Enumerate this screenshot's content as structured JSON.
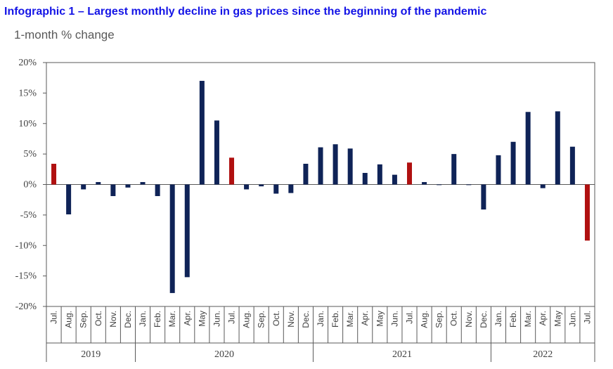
{
  "header": {
    "title": "Infographic 1 –  Largest monthly decline in gas prices since the beginning of the pandemic",
    "subtitle": "1-month % change"
  },
  "colors": {
    "normal": "#0f2357",
    "highlight": "#b01010",
    "axis": "#595959"
  },
  "chart_data": {
    "type": "bar",
    "title": "Infographic 1 –  Largest monthly decline in gas prices since the beginning of the pandemic",
    "ylabel": "1-month % change",
    "ylim": [
      -20,
      20
    ],
    "yticks": [
      20,
      15,
      10,
      5,
      0,
      -5,
      -10,
      -15,
      -20
    ],
    "ytick_labels": [
      "20%",
      "15%",
      "10%",
      "5%",
      "0%",
      "-5%",
      "-10%",
      "-15%",
      "-20%"
    ],
    "grid": false,
    "categories": [
      "Jul.",
      "Aug.",
      "Sep.",
      "Oct.",
      "Nov.",
      "Dec.",
      "Jan.",
      "Feb.",
      "Mar.",
      "Apr.",
      "May",
      "Jun.",
      "Jul.",
      "Aug.",
      "Sep.",
      "Oct.",
      "Nov.",
      "Dec.",
      "Jan.",
      "Feb.",
      "Mar.",
      "Apr.",
      "May",
      "Jun.",
      "Jul.",
      "Aug.",
      "Sep.",
      "Oct.",
      "Nov.",
      "Dec.",
      "Jan.",
      "Feb.",
      "Mar.",
      "Apr.",
      "May",
      "Jun.",
      "Jul."
    ],
    "values": [
      3.4,
      -4.9,
      -0.8,
      0.4,
      -1.9,
      -0.5,
      0.4,
      -1.9,
      -17.8,
      -15.2,
      17.0,
      10.5,
      4.4,
      -0.8,
      -0.3,
      -1.5,
      -1.4,
      3.4,
      6.1,
      6.6,
      5.9,
      1.9,
      3.3,
      1.6,
      3.6,
      0.4,
      -0.1,
      5.0,
      -0.1,
      -4.1,
      4.8,
      7.0,
      11.9,
      -0.6,
      12.0,
      6.2,
      -9.2
    ],
    "highlight": [
      true,
      false,
      false,
      false,
      false,
      false,
      false,
      false,
      false,
      false,
      false,
      false,
      true,
      false,
      false,
      false,
      false,
      false,
      false,
      false,
      false,
      false,
      false,
      false,
      true,
      false,
      false,
      false,
      false,
      false,
      false,
      false,
      false,
      false,
      false,
      false,
      true
    ],
    "years": [
      {
        "label": "2019",
        "start": 0,
        "end": 5
      },
      {
        "label": "2020",
        "start": 6,
        "end": 17
      },
      {
        "label": "2021",
        "start": 18,
        "end": 29
      },
      {
        "label": "2022",
        "start": 30,
        "end": 36
      }
    ]
  }
}
